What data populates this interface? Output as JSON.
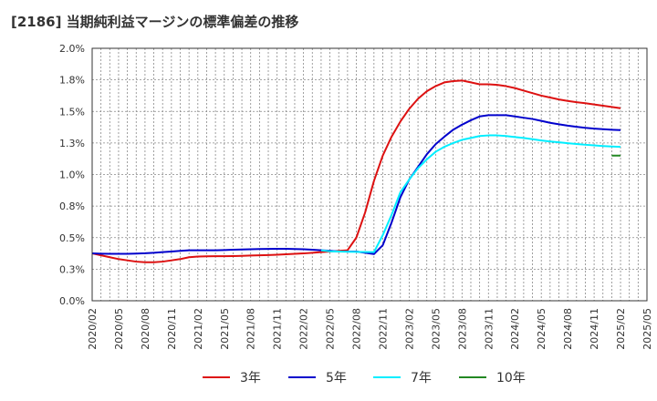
{
  "chart_data": {
    "type": "line",
    "title": "[2186]  当期純利益マージンの標準偏差の推移",
    "xlabel": "",
    "ylabel": "",
    "grid": true,
    "legend_position": "bottom",
    "x_ticks": [
      "2020/02",
      "2020/05",
      "2020/08",
      "2020/11",
      "2021/02",
      "2021/05",
      "2021/08",
      "2021/11",
      "2022/02",
      "2022/05",
      "2022/08",
      "2022/11",
      "2023/02",
      "2023/05",
      "2023/08",
      "2023/11",
      "2024/02",
      "2024/05",
      "2024/08",
      "2024/11",
      "2025/02",
      "2025/05"
    ],
    "y_ticks": [
      "0.0%",
      "0.3%",
      "0.5%",
      "0.8%",
      "1.0%",
      "1.3%",
      "1.5%",
      "1.8%",
      "2.0%"
    ],
    "ylim": [
      0,
      2.0
    ],
    "x": [
      "2020/02",
      "2020/03",
      "2020/04",
      "2020/05",
      "2020/06",
      "2020/07",
      "2020/08",
      "2020/09",
      "2020/10",
      "2020/11",
      "2020/12",
      "2021/01",
      "2021/02",
      "2021/03",
      "2021/04",
      "2021/05",
      "2021/06",
      "2021/07",
      "2021/08",
      "2021/09",
      "2021/10",
      "2021/11",
      "2021/12",
      "2022/01",
      "2022/02",
      "2022/03",
      "2022/04",
      "2022/05",
      "2022/06",
      "2022/07",
      "2022/08",
      "2022/09",
      "2022/10",
      "2022/11",
      "2022/12",
      "2023/01",
      "2023/02",
      "2023/03",
      "2023/04",
      "2023/05",
      "2023/06",
      "2023/07",
      "2023/08",
      "2023/09",
      "2023/10",
      "2023/11",
      "2023/12",
      "2024/01",
      "2024/02",
      "2024/03",
      "2024/04",
      "2024/05",
      "2024/06",
      "2024/07",
      "2024/08",
      "2024/09",
      "2024/10",
      "2024/11",
      "2024/12",
      "2025/01",
      "2025/02"
    ],
    "series": [
      {
        "name": "3年",
        "color": "#dd1111",
        "values": [
          0.375,
          0.36,
          0.345,
          0.33,
          0.32,
          0.31,
          0.305,
          0.305,
          0.31,
          0.32,
          0.33,
          0.345,
          0.35,
          0.352,
          0.353,
          0.353,
          0.354,
          0.356,
          0.358,
          0.36,
          0.362,
          0.365,
          0.368,
          0.372,
          0.375,
          0.38,
          0.385,
          0.39,
          0.395,
          0.4,
          0.5,
          0.7,
          0.95,
          1.15,
          1.3,
          1.42,
          1.52,
          1.6,
          1.66,
          1.7,
          1.73,
          1.74,
          1.745,
          1.73,
          1.715,
          1.715,
          1.71,
          1.7,
          1.685,
          1.665,
          1.645,
          1.625,
          1.61,
          1.595,
          1.583,
          1.573,
          1.565,
          1.555,
          1.545,
          1.535,
          1.525
        ]
      },
      {
        "name": "5年",
        "color": "#0000cc",
        "values": [
          0.375,
          0.373,
          0.372,
          0.372,
          0.372,
          0.374,
          0.376,
          0.38,
          0.385,
          0.39,
          0.395,
          0.4,
          0.4,
          0.4,
          0.4,
          0.402,
          0.404,
          0.406,
          0.408,
          0.41,
          0.411,
          0.412,
          0.412,
          0.41,
          0.408,
          0.404,
          0.4,
          0.396,
          0.39,
          0.39,
          0.39,
          0.38,
          0.37,
          0.44,
          0.62,
          0.82,
          0.96,
          1.06,
          1.16,
          1.24,
          1.3,
          1.355,
          1.395,
          1.43,
          1.46,
          1.47,
          1.47,
          1.47,
          1.46,
          1.45,
          1.44,
          1.425,
          1.41,
          1.398,
          1.387,
          1.378,
          1.37,
          1.364,
          1.359,
          1.355,
          1.352
        ]
      },
      {
        "name": "7年",
        "color": "#00eeff",
        "values": [
          null,
          null,
          null,
          null,
          null,
          null,
          null,
          null,
          null,
          null,
          null,
          null,
          null,
          null,
          null,
          null,
          null,
          null,
          null,
          null,
          null,
          null,
          null,
          null,
          null,
          null,
          0.4,
          0.392,
          0.39,
          0.388,
          0.387,
          0.386,
          0.385,
          0.52,
          0.68,
          0.86,
          0.96,
          1.05,
          1.12,
          1.18,
          1.22,
          1.25,
          1.275,
          1.29,
          1.305,
          1.31,
          1.31,
          1.305,
          1.297,
          1.29,
          1.28,
          1.27,
          1.262,
          1.255,
          1.248,
          1.242,
          1.236,
          1.231,
          1.226,
          1.222,
          1.219
        ]
      },
      {
        "name": "10年",
        "color": "#228822",
        "values": [
          null,
          null,
          null,
          null,
          null,
          null,
          null,
          null,
          null,
          null,
          null,
          null,
          null,
          null,
          null,
          null,
          null,
          null,
          null,
          null,
          null,
          null,
          null,
          null,
          null,
          null,
          null,
          null,
          null,
          null,
          null,
          null,
          null,
          null,
          null,
          null,
          null,
          null,
          null,
          null,
          null,
          null,
          null,
          null,
          null,
          null,
          null,
          null,
          null,
          null,
          null,
          null,
          null,
          null,
          null,
          null,
          null,
          null,
          null,
          1.15,
          1.15
        ]
      }
    ]
  }
}
